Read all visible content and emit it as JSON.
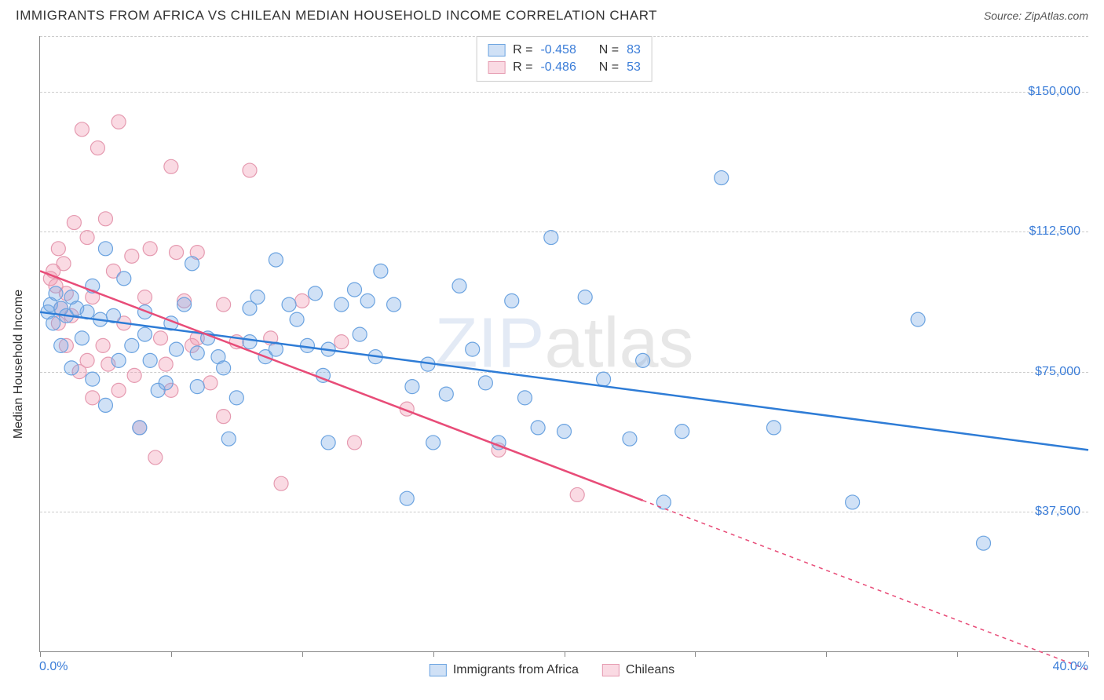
{
  "header": {
    "title": "IMMIGRANTS FROM AFRICA VS CHILEAN MEDIAN HOUSEHOLD INCOME CORRELATION CHART",
    "source_label": "Source: ",
    "source_value": "ZipAtlas.com"
  },
  "chart": {
    "type": "scatter",
    "ylabel": "Median Household Income",
    "xlim": [
      0,
      40
    ],
    "ylim": [
      0,
      165000
    ],
    "x_tick_labels": {
      "min": "0.0%",
      "max": "40.0%"
    },
    "x_ticks_pct": [
      0,
      5,
      10,
      15,
      20,
      25,
      30,
      35,
      40
    ],
    "y_gridlines": [
      37500,
      75000,
      112500,
      150000,
      165000
    ],
    "y_tick_labels": [
      "$37,500",
      "$75,000",
      "$112,500",
      "$150,000"
    ],
    "grid_color": "#cccccc",
    "axis_color": "#888888",
    "background_color": "#ffffff",
    "watermark": {
      "part1": "ZIP",
      "part2": "atlas"
    },
    "series": [
      {
        "name": "Immigrants from Africa",
        "label": "Immigrants from Africa",
        "stroke": "#2e7cd6",
        "fill": "rgba(120,170,230,0.35)",
        "marker_border": "#6ba3e0",
        "marker_radius": 9,
        "R": "-0.458",
        "N": "83",
        "trend": {
          "x1": 0,
          "y1": 91000,
          "x2": 40,
          "y2": 54000,
          "solid_to_x": 40
        },
        "points": [
          [
            0.3,
            91000
          ],
          [
            0.4,
            93000
          ],
          [
            0.5,
            88000
          ],
          [
            0.6,
            96000
          ],
          [
            0.8,
            82000
          ],
          [
            0.8,
            92000
          ],
          [
            1.0,
            90000
          ],
          [
            1.2,
            76000
          ],
          [
            1.2,
            95000
          ],
          [
            1.4,
            92000
          ],
          [
            1.6,
            84000
          ],
          [
            1.8,
            91000
          ],
          [
            2.0,
            73000
          ],
          [
            2.0,
            98000
          ],
          [
            2.3,
            89000
          ],
          [
            2.5,
            108000
          ],
          [
            2.5,
            66000
          ],
          [
            2.8,
            90000
          ],
          [
            3.0,
            78000
          ],
          [
            3.2,
            100000
          ],
          [
            3.5,
            82000
          ],
          [
            3.8,
            60000
          ],
          [
            4.0,
            91000
          ],
          [
            4.0,
            85000
          ],
          [
            4.2,
            78000
          ],
          [
            4.5,
            70000
          ],
          [
            4.8,
            72000
          ],
          [
            5.0,
            88000
          ],
          [
            5.2,
            81000
          ],
          [
            5.5,
            93000
          ],
          [
            5.8,
            104000
          ],
          [
            6.0,
            80000
          ],
          [
            6.0,
            71000
          ],
          [
            6.4,
            84000
          ],
          [
            6.8,
            79000
          ],
          [
            7.0,
            76000
          ],
          [
            7.2,
            57000
          ],
          [
            7.5,
            68000
          ],
          [
            8.0,
            92000
          ],
          [
            8.0,
            83000
          ],
          [
            8.3,
            95000
          ],
          [
            8.6,
            79000
          ],
          [
            9.0,
            105000
          ],
          [
            9.0,
            81000
          ],
          [
            9.5,
            93000
          ],
          [
            9.8,
            89000
          ],
          [
            10.2,
            82000
          ],
          [
            10.5,
            96000
          ],
          [
            10.8,
            74000
          ],
          [
            11.0,
            81000
          ],
          [
            11.0,
            56000
          ],
          [
            11.5,
            93000
          ],
          [
            12.0,
            97000
          ],
          [
            12.2,
            85000
          ],
          [
            12.5,
            94000
          ],
          [
            12.8,
            79000
          ],
          [
            13.0,
            102000
          ],
          [
            13.5,
            93000
          ],
          [
            14.0,
            41000
          ],
          [
            14.2,
            71000
          ],
          [
            14.8,
            77000
          ],
          [
            15.0,
            56000
          ],
          [
            15.5,
            69000
          ],
          [
            16.0,
            98000
          ],
          [
            16.5,
            81000
          ],
          [
            17.0,
            72000
          ],
          [
            17.5,
            56000
          ],
          [
            18.0,
            94000
          ],
          [
            18.5,
            68000
          ],
          [
            19.0,
            60000
          ],
          [
            19.5,
            111000
          ],
          [
            20.0,
            59000
          ],
          [
            20.8,
            95000
          ],
          [
            21.5,
            73000
          ],
          [
            22.5,
            57000
          ],
          [
            23.0,
            78000
          ],
          [
            23.8,
            40000
          ],
          [
            24.5,
            59000
          ],
          [
            26.0,
            127000
          ],
          [
            28.0,
            60000
          ],
          [
            31.0,
            40000
          ],
          [
            33.5,
            89000
          ],
          [
            36.0,
            29000
          ]
        ]
      },
      {
        "name": "Chileans",
        "label": "Chileans",
        "stroke": "#e84c78",
        "fill": "rgba(240,150,175,0.35)",
        "marker_border": "#e59ab0",
        "marker_radius": 9,
        "R": "-0.486",
        "N": "53",
        "trend": {
          "x1": 0,
          "y1": 102000,
          "x2": 40,
          "y2": -5000,
          "solid_to_x": 23
        },
        "points": [
          [
            0.4,
            100000
          ],
          [
            0.5,
            102000
          ],
          [
            0.6,
            98000
          ],
          [
            0.7,
            88000
          ],
          [
            0.7,
            108000
          ],
          [
            0.8,
            92000
          ],
          [
            0.9,
            104000
          ],
          [
            1.0,
            82000
          ],
          [
            1.0,
            96000
          ],
          [
            1.2,
            90000
          ],
          [
            1.3,
            115000
          ],
          [
            1.5,
            75000
          ],
          [
            1.6,
            140000
          ],
          [
            1.8,
            111000
          ],
          [
            1.8,
            78000
          ],
          [
            2.0,
            95000
          ],
          [
            2.0,
            68000
          ],
          [
            2.2,
            135000
          ],
          [
            2.4,
            82000
          ],
          [
            2.5,
            116000
          ],
          [
            2.6,
            77000
          ],
          [
            2.8,
            102000
          ],
          [
            3.0,
            70000
          ],
          [
            3.0,
            142000
          ],
          [
            3.2,
            88000
          ],
          [
            3.5,
            106000
          ],
          [
            3.6,
            74000
          ],
          [
            3.8,
            60000
          ],
          [
            4.0,
            95000
          ],
          [
            4.2,
            108000
          ],
          [
            4.4,
            52000
          ],
          [
            4.6,
            84000
          ],
          [
            4.8,
            77000
          ],
          [
            5.0,
            130000
          ],
          [
            5.0,
            70000
          ],
          [
            5.2,
            107000
          ],
          [
            5.5,
            94000
          ],
          [
            5.8,
            82000
          ],
          [
            6.0,
            84000
          ],
          [
            6.0,
            107000
          ],
          [
            6.5,
            72000
          ],
          [
            7.0,
            93000
          ],
          [
            7.0,
            63000
          ],
          [
            7.5,
            83000
          ],
          [
            8.0,
            129000
          ],
          [
            8.8,
            84000
          ],
          [
            9.2,
            45000
          ],
          [
            10.0,
            94000
          ],
          [
            11.5,
            83000
          ],
          [
            12.0,
            56000
          ],
          [
            14.0,
            65000
          ],
          [
            17.5,
            54000
          ],
          [
            20.5,
            42000
          ]
        ]
      }
    ],
    "legend_stats": {
      "R_label": "R = ",
      "N_label": "N = "
    }
  }
}
